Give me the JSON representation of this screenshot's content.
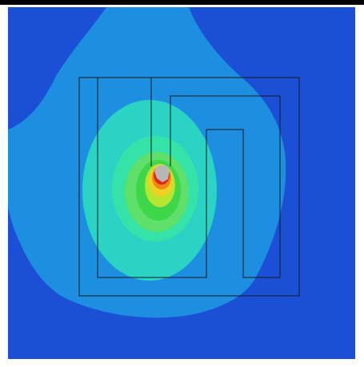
{
  "plot": {
    "colors": {
      "background": "#ffffff",
      "frame": "#000000",
      "outer_field": "#1a4fd6",
      "level_1": "#1e8fe0",
      "level_2": "#2ad3c4",
      "level_3": "#35e3a8",
      "level_4": "#5ee06a",
      "level_5": "#3fd64a",
      "level_6": "#b8e432",
      "level_7": "#f0d020",
      "level_8": "#f08a16",
      "level_9": "#e02818",
      "peak": "#b8b8b8",
      "outline": "#1a1a1a"
    }
  }
}
